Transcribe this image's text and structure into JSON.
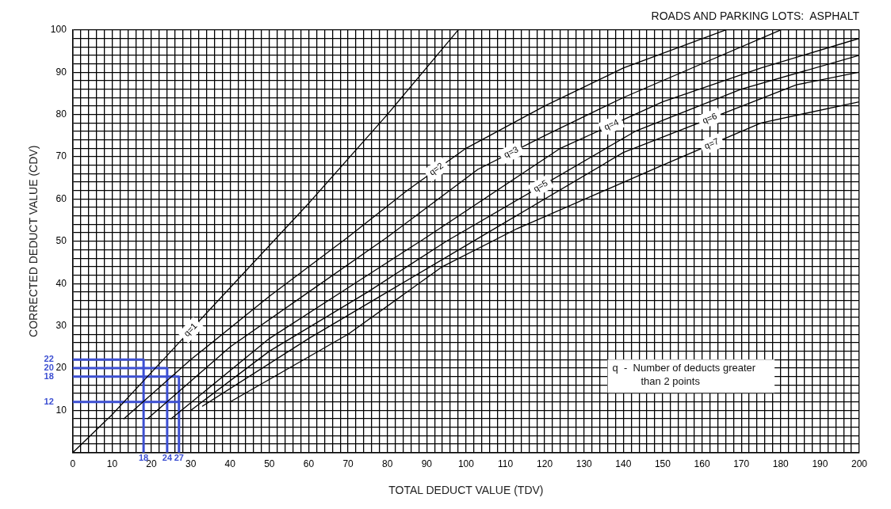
{
  "chart_data": {
    "type": "line",
    "title": "ROADS AND PARKING LOTS:  ASPHALT",
    "xlabel": "TOTAL DEDUCT VALUE (TDV)",
    "ylabel": "CORRECTED DEDUCT VALUE (CDV)",
    "xlim": [
      0,
      200
    ],
    "ylim": [
      0,
      100
    ],
    "xticks": [
      0,
      {
        "value": 2,
        "label": null
      },
      {
        "value": 4,
        "label": null
      },
      {
        "value": 6,
        "label": null
      },
      {
        "value": 8,
        "label": null
      },
      10,
      {
        "value": 12,
        "label": null
      },
      {
        "value": 14,
        "label": null
      },
      {
        "value": 16,
        "label": null
      },
      {
        "value": 18,
        "label": null
      },
      20,
      {
        "value": 22,
        "label": null
      },
      {
        "value": 24,
        "label": null
      },
      {
        "value": 26,
        "label": null
      },
      {
        "value": 28,
        "label": null
      },
      30,
      {
        "value": 32,
        "label": null
      },
      {
        "value": 34,
        "label": null
      },
      {
        "value": 36,
        "label": null
      },
      {
        "value": 38,
        "label": null
      },
      40,
      {
        "value": 42,
        "label": null
      },
      {
        "value": 44,
        "label": null
      },
      {
        "value": 46,
        "label": null
      },
      {
        "value": 48,
        "label": null
      },
      50,
      {
        "value": 52,
        "label": null
      },
      {
        "value": 54,
        "label": null
      },
      {
        "value": 56,
        "label": null
      },
      {
        "value": 58,
        "label": null
      },
      60,
      {
        "value": 62,
        "label": null
      },
      {
        "value": 64,
        "label": null
      },
      {
        "value": 66,
        "label": null
      },
      {
        "value": 68,
        "label": null
      },
      70,
      {
        "value": 72,
        "label": null
      },
      {
        "value": 74,
        "label": null
      },
      {
        "value": 76,
        "label": null
      },
      {
        "value": 78,
        "label": null
      },
      80,
      {
        "value": 82,
        "label": null
      },
      {
        "value": 84,
        "label": null
      },
      {
        "value": 86,
        "label": null
      },
      {
        "value": 88,
        "label": null
      },
      90,
      {
        "value": 92,
        "label": null
      },
      {
        "value": 94,
        "label": null
      },
      {
        "value": 96,
        "label": null
      },
      {
        "value": 98,
        "label": null
      },
      100,
      {
        "value": 102,
        "label": null
      },
      {
        "value": 104,
        "label": null
      },
      {
        "value": 106,
        "label": null
      },
      {
        "value": 108,
        "label": null
      },
      110,
      {
        "value": 112,
        "label": null
      },
      {
        "value": 114,
        "label": null
      },
      {
        "value": 116,
        "label": null
      },
      {
        "value": 118,
        "label": null
      },
      120,
      {
        "value": 122,
        "label": null
      },
      {
        "value": 124,
        "label": null
      },
      {
        "value": 126,
        "label": null
      },
      {
        "value": 128,
        "label": null
      },
      130,
      {
        "value": 132,
        "label": null
      },
      {
        "value": 134,
        "label": null
      },
      {
        "value": 136,
        "label": null
      },
      {
        "value": 138,
        "label": null
      },
      140,
      {
        "value": 142,
        "label": null
      },
      {
        "value": 144,
        "label": null
      },
      {
        "value": 146,
        "label": null
      },
      {
        "value": 148,
        "label": null
      },
      150,
      {
        "value": 152,
        "label": null
      },
      {
        "value": 154,
        "label": null
      },
      {
        "value": 156,
        "label": null
      },
      {
        "value": 158,
        "label": null
      },
      160,
      {
        "value": 162,
        "label": null
      },
      {
        "value": 164,
        "label": null
      },
      {
        "value": 166,
        "label": null
      },
      {
        "value": 168,
        "label": null
      },
      170,
      {
        "value": 172,
        "label": null
      },
      {
        "value": 174,
        "label": null
      },
      {
        "value": 176,
        "label": null
      },
      {
        "value": 178,
        "label": null
      },
      180,
      {
        "value": 182,
        "label": null
      },
      {
        "value": 184,
        "label": null
      },
      {
        "value": 186,
        "label": null
      },
      {
        "value": 188,
        "label": null
      },
      190,
      {
        "value": 192,
        "label": null
      },
      {
        "value": 194,
        "label": null
      },
      {
        "value": 196,
        "label": null
      },
      {
        "value": 198,
        "label": null
      },
      200
    ],
    "yticks": [
      {
        "value": 0,
        "label": null
      },
      {
        "value": 2,
        "label": null
      },
      {
        "value": 4,
        "label": null
      },
      {
        "value": 6,
        "label": null
      },
      {
        "value": 8,
        "label": null
      },
      10,
      {
        "value": 12,
        "label": null
      },
      {
        "value": 14,
        "label": null
      },
      {
        "value": 16,
        "label": null
      },
      {
        "value": 18,
        "label": null
      },
      20,
      {
        "value": 22,
        "label": null
      },
      {
        "value": 24,
        "label": null
      },
      {
        "value": 26,
        "label": null
      },
      {
        "value": 28,
        "label": null
      },
      30,
      {
        "value": 32,
        "label": null
      },
      {
        "value": 34,
        "label": null
      },
      {
        "value": 36,
        "label": null
      },
      {
        "value": 38,
        "label": null
      },
      40,
      {
        "value": 42,
        "label": null
      },
      {
        "value": 44,
        "label": null
      },
      {
        "value": 46,
        "label": null
      },
      {
        "value": 48,
        "label": null
      },
      50,
      {
        "value": 52,
        "label": null
      },
      {
        "value": 54,
        "label": null
      },
      {
        "value": 56,
        "label": null
      },
      {
        "value": 58,
        "label": null
      },
      60,
      {
        "value": 62,
        "label": null
      },
      {
        "value": 64,
        "label": null
      },
      {
        "value": 66,
        "label": null
      },
      {
        "value": 68,
        "label": null
      },
      70,
      {
        "value": 72,
        "label": null
      },
      {
        "value": 74,
        "label": null
      },
      {
        "value": 76,
        "label": null
      },
      {
        "value": 78,
        "label": null
      },
      80,
      {
        "value": 82,
        "label": null
      },
      {
        "value": 84,
        "label": null
      },
      {
        "value": 86,
        "label": null
      },
      {
        "value": 88,
        "label": null
      },
      90,
      {
        "value": 92,
        "label": null
      },
      {
        "value": 94,
        "label": null
      },
      {
        "value": 96,
        "label": null
      },
      {
        "value": 98,
        "label": null
      },
      100
    ],
    "grid": true,
    "legend": false,
    "marker": "none",
    "line_style": "solid",
    "series": [
      {
        "name": "q=1",
        "color": "#000000",
        "x": [
          0,
          10,
          20,
          40,
          60,
          80,
          98
        ],
        "values": [
          0,
          9,
          19,
          39,
          59,
          80,
          100
        ]
      },
      {
        "name": "q=2",
        "color": "#000000",
        "x": [
          13,
          30,
          50,
          70,
          85,
          100,
          120,
          140,
          166
        ],
        "values": [
          8,
          22,
          37,
          51,
          62,
          72,
          82,
          91,
          100
        ]
      },
      {
        "name": "q=3",
        "color": "#000000",
        "x": [
          19,
          40,
          60,
          80,
          103,
          120,
          140,
          160,
          180
        ],
        "values": [
          8,
          25,
          38,
          51,
          67,
          75,
          84,
          92,
          100
        ]
      },
      {
        "name": "q=4",
        "color": "#000000",
        "x": [
          25,
          50,
          70,
          90,
          124,
          150,
          175,
          200
        ],
        "values": [
          8,
          27,
          39,
          51,
          72,
          83,
          91,
          98
        ]
      },
      {
        "name": "q=5",
        "color": "#000000",
        "x": [
          30,
          50,
          75,
          95,
          143,
          170,
          200
        ],
        "values": [
          10,
          24,
          38,
          50,
          76,
          86,
          94
        ]
      },
      {
        "name": "q=6",
        "color": "#000000",
        "x": [
          33,
          60,
          80,
          100,
          140,
          184,
          200
        ],
        "values": [
          11,
          27,
          38,
          49,
          71,
          87,
          90
        ]
      },
      {
        "name": "q=7",
        "color": "#000000",
        "x": [
          40,
          70,
          94,
          113,
          150,
          175,
          200
        ],
        "values": [
          12,
          28,
          44,
          53,
          68,
          78,
          83
        ]
      },
      {
        "color": "#3c4fd2",
        "x": [
          0,
          18,
          18
        ],
        "values": [
          22,
          22,
          0
        ]
      },
      {
        "color": "#3c4fd2",
        "x": [
          0,
          24,
          24
        ],
        "values": [
          20,
          20,
          0
        ]
      },
      {
        "color": "#3c4fd2",
        "x": [
          0,
          27,
          27
        ],
        "values": [
          18,
          18,
          0
        ]
      },
      {
        "color": "#3c4fd2",
        "x": [
          0,
          27
        ],
        "values": [
          12,
          12
        ]
      }
    ],
    "annotations": [
      {
        "text": "22",
        "x": 0,
        "y": 22
      },
      {
        "text": "20",
        "x": 0,
        "y": 20
      },
      {
        "text": "18",
        "x": 0,
        "y": 18
      },
      {
        "text": "12",
        "x": 0,
        "y": 12
      },
      {
        "text": "18",
        "x": 18,
        "y": 0
      },
      {
        "text": "24",
        "x": 24,
        "y": 0
      },
      {
        "text": "27",
        "x": 27,
        "y": 0
      },
      "q  -  Number of deducts greater\nthan 2 points"
    ]
  }
}
